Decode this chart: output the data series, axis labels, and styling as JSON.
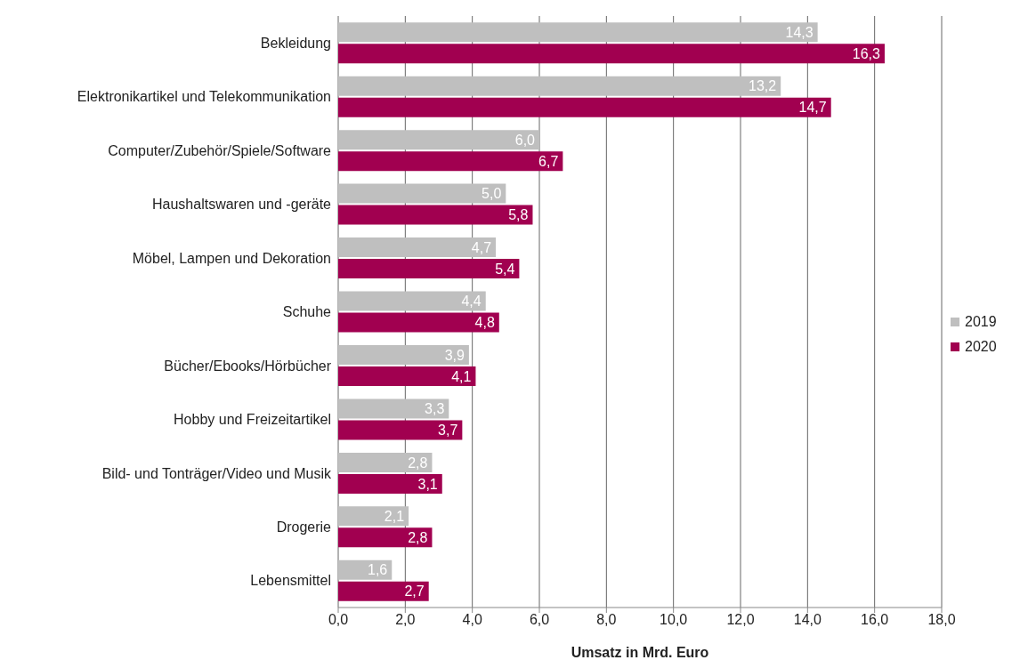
{
  "chart_data": {
    "type": "bar",
    "orientation": "horizontal",
    "xlabel": "Umsatz in Mrd. Euro",
    "categories": [
      "Bekleidung",
      "Elektronikartikel und Telekommunikation",
      "Computer/Zubehör/Spiele/Software",
      "Haushaltswaren und -geräte",
      "Möbel, Lampen und Dekoration",
      "Schuhe",
      "Bücher/Ebooks/Hörbücher",
      "Hobby und Freizeitartikel",
      "Bild- und Tonträger/Video und Musik",
      "Drogerie",
      "Lebensmittel"
    ],
    "series": [
      {
        "name": "2019",
        "color": "#bfbfbf",
        "values": [
          14.3,
          13.2,
          6.0,
          5.0,
          4.7,
          4.4,
          3.9,
          3.3,
          2.8,
          2.1,
          1.6
        ],
        "value_labels": [
          "14,3",
          "13,2",
          "6,0",
          "5,0",
          "4,7",
          "4,4",
          "3,9",
          "3,3",
          "2,8",
          "2,1",
          "1,6"
        ]
      },
      {
        "name": "2020",
        "color": "#a10050",
        "values": [
          16.3,
          14.7,
          6.7,
          5.8,
          5.4,
          4.8,
          4.1,
          3.7,
          3.1,
          2.8,
          2.7
        ],
        "value_labels": [
          "16,3",
          "14,7",
          "6,7",
          "5,8",
          "5,4",
          "4,8",
          "4,1",
          "3,7",
          "3,1",
          "2,8",
          "2,7"
        ]
      }
    ],
    "xlim": [
      0,
      18
    ],
    "xticks": [
      {
        "value": 0,
        "label": "0,0"
      },
      {
        "value": 2,
        "label": "2,0"
      },
      {
        "value": 4,
        "label": "4,0"
      },
      {
        "value": 6,
        "label": "6,0"
      },
      {
        "value": 8,
        "label": "8,0"
      },
      {
        "value": 10,
        "label": "10,0"
      },
      {
        "value": 12,
        "label": "12,0"
      },
      {
        "value": 14,
        "label": "14,0"
      },
      {
        "value": 16,
        "label": "16,0"
      },
      {
        "value": 18,
        "label": "18,0"
      }
    ],
    "grid": "x",
    "legend": "right"
  }
}
